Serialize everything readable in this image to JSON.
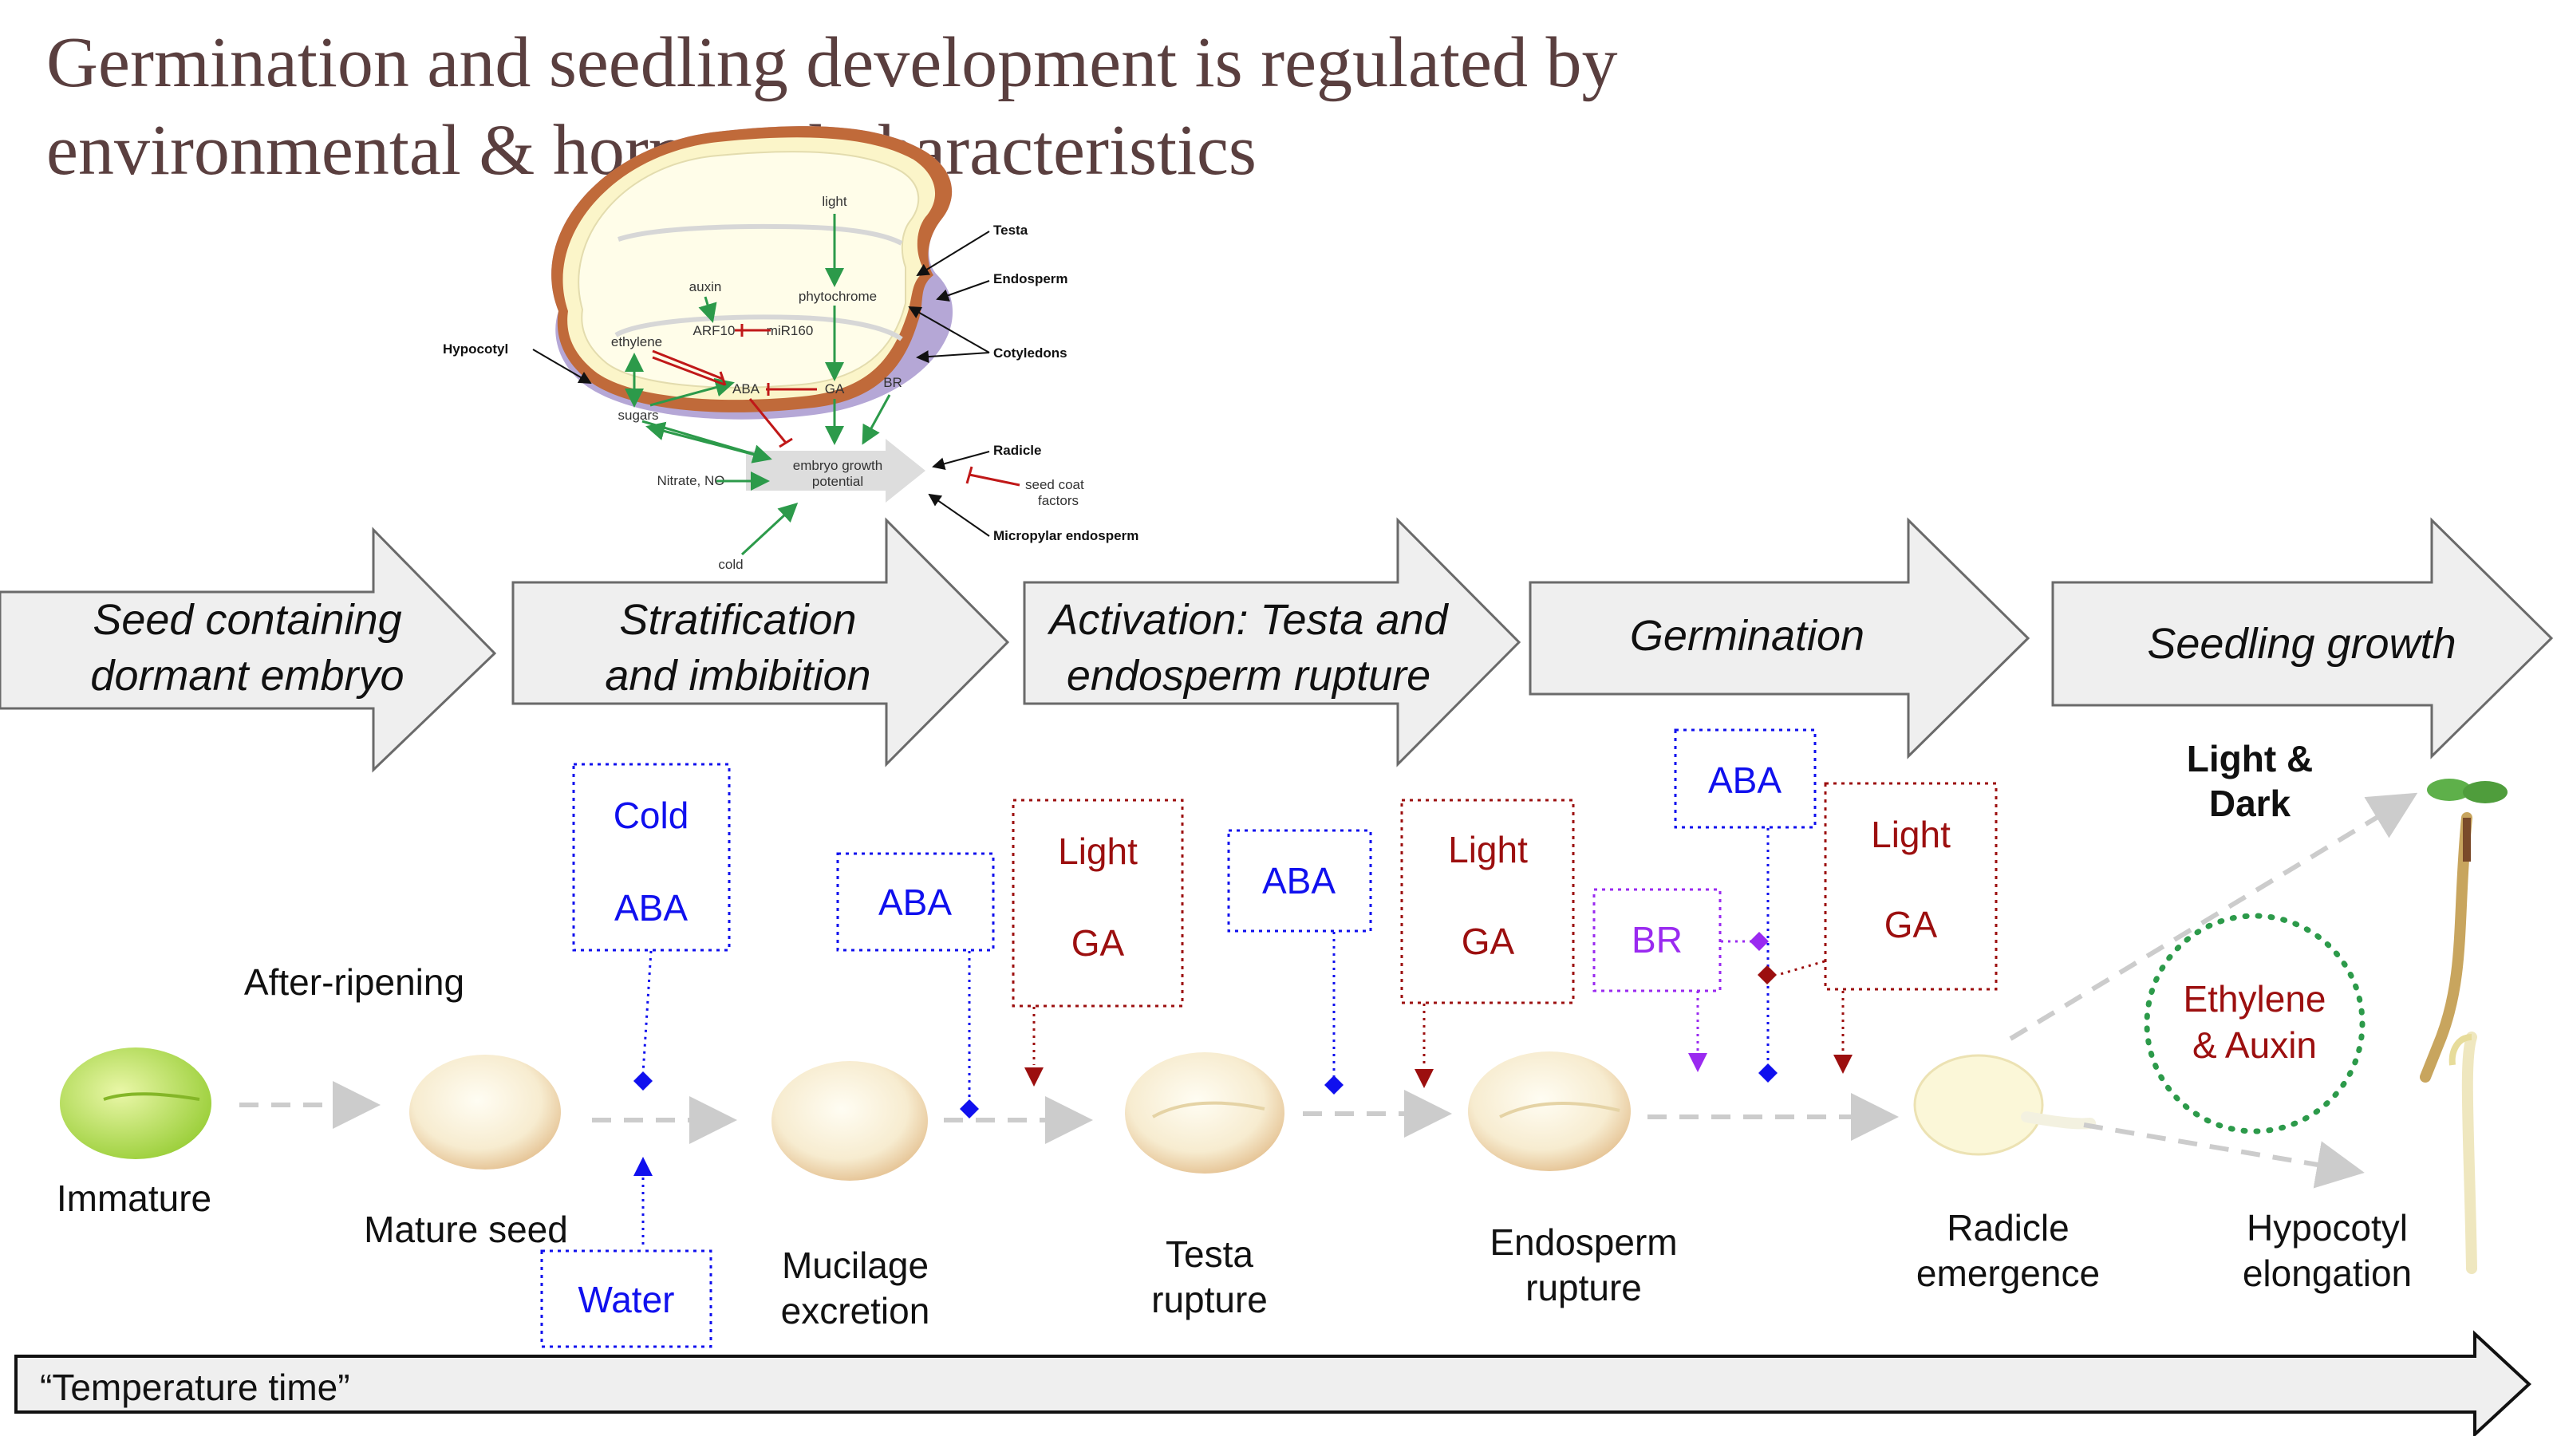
{
  "title": "Germination and seedling development is regulated by environmental & hormonal characteristics",
  "seed_diagram": {
    "light": "light",
    "phytochrome": "phytochrome",
    "auxin": "auxin",
    "arf10": "ARF10",
    "mir160": "miR160",
    "ethylene": "ethylene",
    "aba": "ABA",
    "ga": "GA",
    "br": "BR",
    "sugars": "sugars",
    "nitrate": "Nitrate, NO",
    "egp_line1": "embryo growth",
    "egp_line2": "potential",
    "cold": "cold",
    "seed_coat_line1": "seed coat",
    "seed_coat_line2": "factors",
    "testa": "Testa",
    "endosperm": "Endosperm",
    "cotyledons": "Cotyledons",
    "hypocotyl": "Hypocotyl",
    "radicle": "Radicle",
    "micropylar": "Micropylar endosperm"
  },
  "stages": [
    {
      "line1": "Seed containing",
      "line2": "dormant embryo"
    },
    {
      "line1": "Stratification",
      "line2": "and imbibition"
    },
    {
      "line1": "Activation: Testa and",
      "line2": "endosperm rupture"
    },
    {
      "line1": "Germination",
      "line2": ""
    },
    {
      "line1": "Seedling growth",
      "line2": ""
    }
  ],
  "factors": {
    "cold_aba": {
      "line1": "Cold",
      "line2": "ABA"
    },
    "aba_1": "ABA",
    "light_ga_1": {
      "line1": "Light",
      "line2": "GA"
    },
    "aba_2": "ABA",
    "light_ga_2": {
      "line1": "Light",
      "line2": "GA"
    },
    "br": "BR",
    "aba_3": "ABA",
    "light_ga_3": {
      "line1": "Light",
      "line2": "GA"
    },
    "water": "Water",
    "light_dark": {
      "line1": "Light &",
      "line2": "Dark"
    },
    "ethylene_auxin": {
      "line1": "Ethylene",
      "line2": "& Auxin"
    }
  },
  "after_ripening": "After-ripening",
  "captions": {
    "immature": "Immature",
    "mature_seed": "Mature seed",
    "mucilage": {
      "line1": "Mucilage",
      "line2": "excretion"
    },
    "testa": {
      "line1": "Testa",
      "line2": "rupture"
    },
    "endosperm": {
      "line1": "Endosperm",
      "line2": "rupture"
    },
    "radicle": {
      "line1": "Radicle",
      "line2": "emergence"
    },
    "hypocotyl": {
      "line1": "Hypocotyl",
      "line2": "elongation"
    }
  },
  "temperature_time": "“Temperature time”",
  "colors": {
    "blue": "#1010ee",
    "red": "#9c0f0f",
    "purple": "#9a2af0",
    "green": "#1e8a2e",
    "arrow_fill": "#efefef"
  }
}
